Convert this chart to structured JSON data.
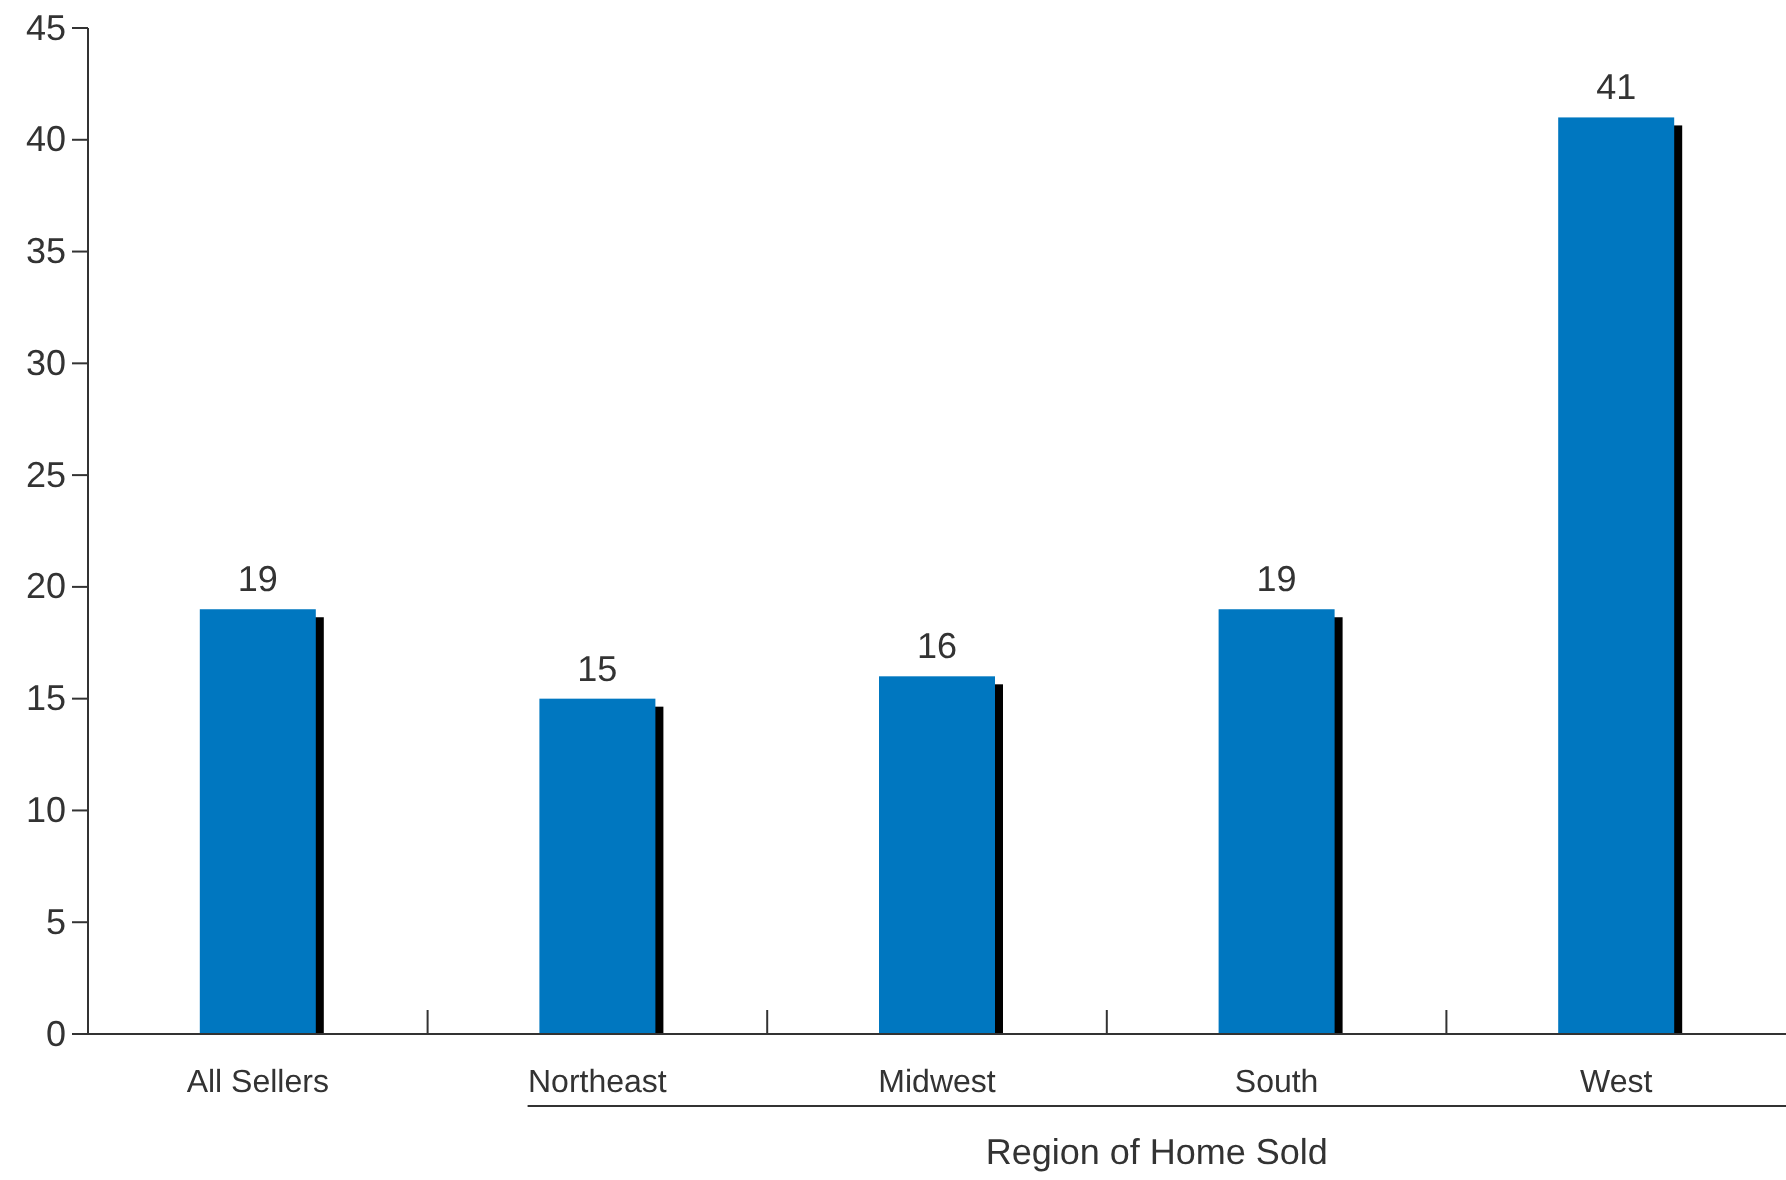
{
  "chart_data": {
    "type": "bar",
    "categories": [
      "All Sellers",
      "Northeast",
      "Midwest",
      "South",
      "West"
    ],
    "values": [
      19,
      15,
      16,
      19,
      41
    ],
    "color": "#0077c0",
    "xlabel": "Region of Home Sold",
    "ylim": [
      0,
      45
    ],
    "yticks": [
      0,
      5,
      10,
      15,
      20,
      25,
      30,
      35,
      40,
      45
    ],
    "data_labels": true
  }
}
